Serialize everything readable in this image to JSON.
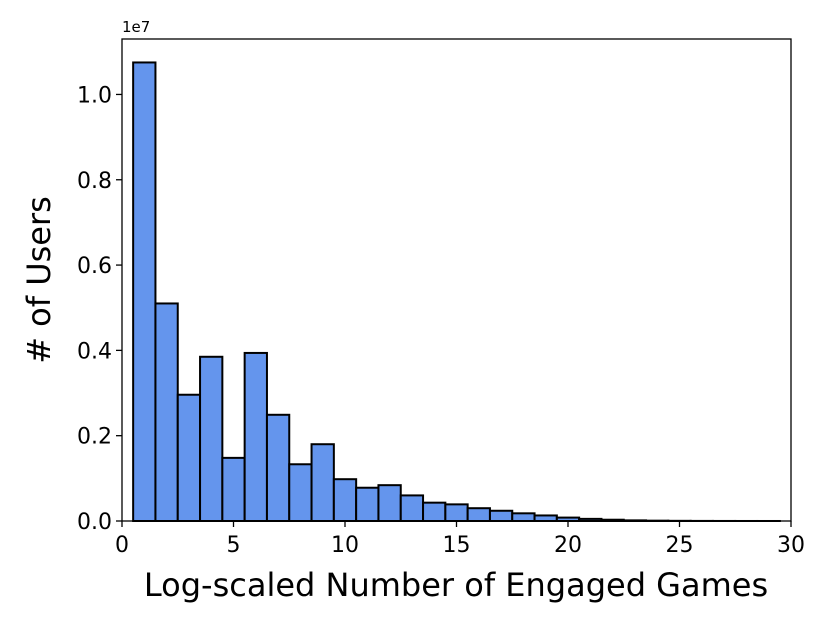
{
  "chart_data": {
    "type": "bar",
    "xlabel": "Log-scaled Number of Engaged Games",
    "ylabel": "# of Users",
    "y_offset_label": "1e7",
    "xlim": [
      0,
      30
    ],
    "ylim": [
      0,
      11300000
    ],
    "xticks": [
      0,
      5,
      10,
      15,
      20,
      25,
      30
    ],
    "yticks": [
      0.0,
      0.2,
      0.4,
      0.6,
      0.8,
      1.0
    ],
    "ytick_scale": 10000000,
    "bin_width": 1,
    "grid": false,
    "bar_color": "#6495ED",
    "edge_color": "#000000",
    "bins": [
      {
        "x0": 0.5,
        "value": 10750000
      },
      {
        "x0": 1.5,
        "value": 5100000
      },
      {
        "x0": 2.5,
        "value": 2960000
      },
      {
        "x0": 3.5,
        "value": 3850000
      },
      {
        "x0": 4.5,
        "value": 1480000
      },
      {
        "x0": 5.5,
        "value": 3940000
      },
      {
        "x0": 6.5,
        "value": 2490000
      },
      {
        "x0": 7.5,
        "value": 1330000
      },
      {
        "x0": 8.5,
        "value": 1800000
      },
      {
        "x0": 9.5,
        "value": 980000
      },
      {
        "x0": 10.5,
        "value": 780000
      },
      {
        "x0": 11.5,
        "value": 840000
      },
      {
        "x0": 12.5,
        "value": 600000
      },
      {
        "x0": 13.5,
        "value": 430000
      },
      {
        "x0": 14.5,
        "value": 390000
      },
      {
        "x0": 15.5,
        "value": 300000
      },
      {
        "x0": 16.5,
        "value": 240000
      },
      {
        "x0": 17.5,
        "value": 180000
      },
      {
        "x0": 18.5,
        "value": 130000
      },
      {
        "x0": 19.5,
        "value": 80000
      },
      {
        "x0": 20.5,
        "value": 50000
      },
      {
        "x0": 21.5,
        "value": 30000
      },
      {
        "x0": 22.5,
        "value": 15000
      },
      {
        "x0": 23.5,
        "value": 8000
      },
      {
        "x0": 24.5,
        "value": 4000
      },
      {
        "x0": 25.5,
        "value": 2000
      },
      {
        "x0": 26.5,
        "value": 1000
      },
      {
        "x0": 27.5,
        "value": 500
      },
      {
        "x0": 28.5,
        "value": 200
      }
    ]
  }
}
